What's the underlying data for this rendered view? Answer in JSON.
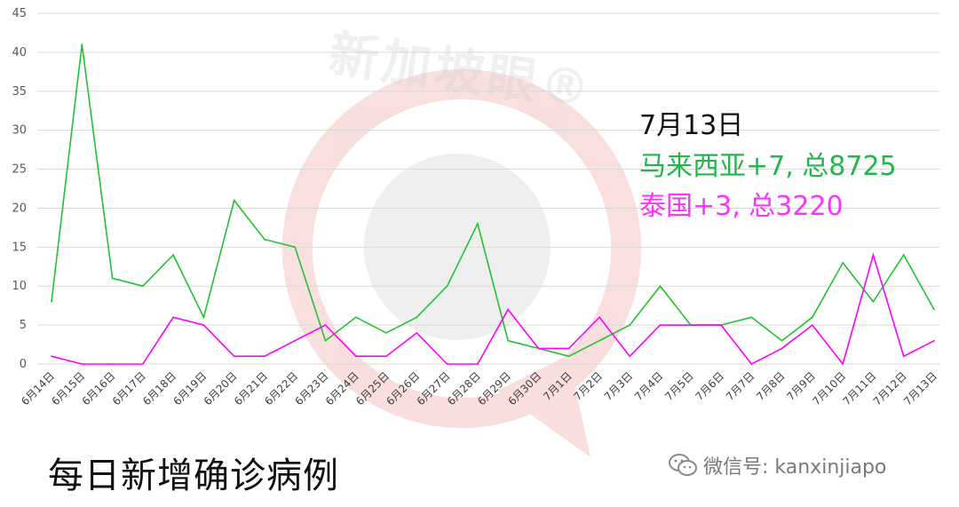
{
  "chart_data": {
    "type": "line",
    "categories": [
      "6月14日",
      "6月15日",
      "6月16日",
      "6月17日",
      "6月18日",
      "6月19日",
      "6月20日",
      "6月21日",
      "6月22日",
      "6月23日",
      "6月24日",
      "6月25日",
      "6月26日",
      "6月27日",
      "6月28日",
      "6月29日",
      "6月30日",
      "7月1日",
      "7月2日",
      "7月3日",
      "7月4日",
      "7月5日",
      "7月6日",
      "7月7日",
      "7月8日",
      "7月9日",
      "7月10日",
      "7月11日",
      "7月12日",
      "7月13日"
    ],
    "series": [
      {
        "values": [
          8,
          41,
          11,
          10,
          14,
          6,
          21,
          16,
          15,
          3,
          6,
          4,
          6,
          10,
          18,
          3,
          2,
          1,
          3,
          5,
          10,
          5,
          5,
          6,
          3,
          6,
          13,
          8,
          14,
          7
        ],
        "color": "#22c231"
      },
      {
        "values": [
          1,
          0,
          0,
          0,
          6,
          5,
          1,
          1,
          3,
          5,
          1,
          1,
          4,
          0,
          0,
          7,
          2,
          2,
          6,
          1,
          5,
          5,
          5,
          0,
          2,
          5,
          0,
          14,
          1,
          3
        ],
        "color": "#ff00ff"
      }
    ],
    "ylim": [
      0,
      45
    ],
    "yticks": [
      0,
      5,
      10,
      15,
      20,
      25,
      30,
      35,
      40,
      45
    ],
    "grid": true,
    "title": "每日新增确诊病例",
    "annotations": {
      "date": "7月13日",
      "malaysia": "马来西亚+7, 总8725",
      "thailand": "泰国+3, 总3220"
    }
  },
  "watermark": "新加坡眼®",
  "footer": {
    "wechat_label": "微信号: kanxinjiapo"
  }
}
